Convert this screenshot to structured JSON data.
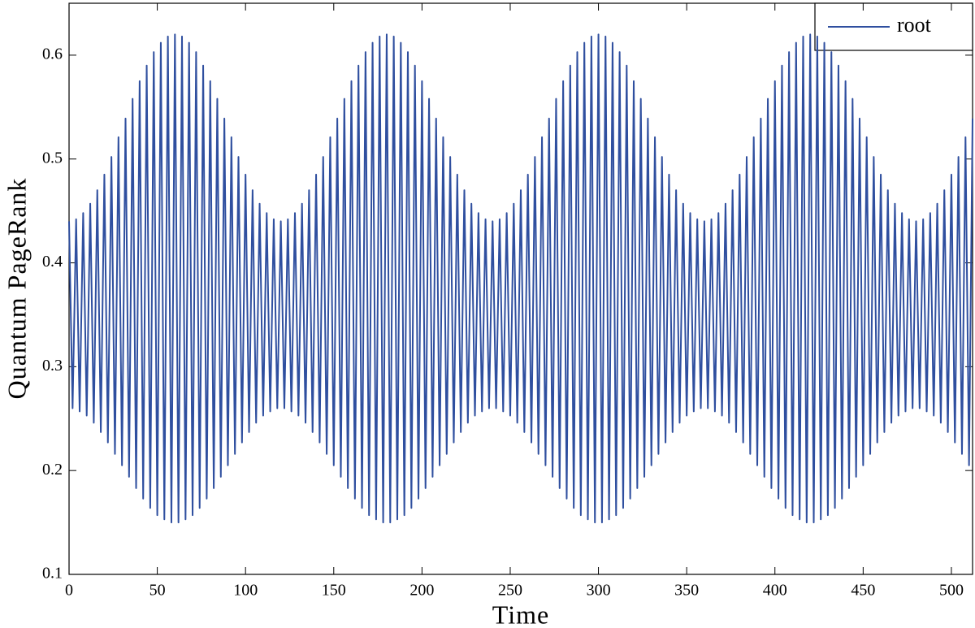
{
  "chart_data": {
    "type": "line",
    "xlabel": "Time",
    "ylabel": "Quantum PageRank",
    "xlim": [
      0,
      512
    ],
    "ylim": [
      0.1,
      0.65
    ],
    "xticks": [
      0,
      50,
      100,
      150,
      200,
      250,
      300,
      350,
      400,
      450,
      500
    ],
    "yticks": [
      0.1,
      0.2,
      0.3,
      0.4,
      0.5,
      0.6
    ],
    "legend": "top-right",
    "x": [
      0,
      2,
      4,
      6,
      8,
      10,
      12,
      14,
      16,
      18,
      20,
      22,
      24,
      26,
      28,
      30,
      32,
      34,
      36,
      38,
      40,
      42,
      44,
      46,
      48,
      50,
      52,
      54,
      56,
      58,
      60,
      62,
      64,
      66,
      68,
      70,
      72,
      74,
      76,
      78,
      80,
      82,
      84,
      86,
      88,
      90,
      92,
      94,
      96,
      98,
      100,
      102,
      104,
      106,
      108,
      110,
      112,
      114,
      116,
      118,
      120,
      122,
      124,
      126,
      128,
      130,
      132,
      134,
      136,
      138,
      140,
      142,
      144,
      146,
      148,
      150,
      152,
      154,
      156,
      158,
      160,
      162,
      164,
      166,
      168,
      170,
      172,
      174,
      176,
      178,
      180,
      182,
      184,
      186,
      188,
      190,
      192,
      194,
      196,
      198,
      200,
      202,
      204,
      206,
      208,
      210,
      212,
      214,
      216,
      218,
      220,
      222,
      224,
      226,
      228,
      230,
      232,
      234,
      236,
      238,
      240,
      242,
      244,
      246,
      248,
      250,
      252,
      254,
      256,
      258,
      260,
      262,
      264,
      266,
      268,
      270,
      272,
      274,
      276,
      278,
      280,
      282,
      284,
      286,
      288,
      290,
      292,
      294,
      296,
      298,
      300,
      302,
      304,
      306,
      308,
      310,
      312,
      314,
      316,
      318,
      320,
      322,
      324,
      326,
      328,
      330,
      332,
      334,
      336,
      338,
      340,
      342,
      344,
      346,
      348,
      350,
      352,
      354,
      356,
      358,
      360,
      362,
      364,
      366,
      368,
      370,
      372,
      374,
      376,
      378,
      380,
      382,
      384,
      386,
      388,
      390,
      392,
      394,
      396,
      398,
      400,
      402,
      404,
      406,
      408,
      410,
      412,
      414,
      416,
      418,
      420,
      422,
      424,
      426,
      428,
      430,
      432,
      434,
      436,
      438,
      440,
      442,
      444,
      446,
      448,
      450,
      452,
      454,
      456,
      458,
      460,
      462,
      464,
      466,
      468,
      470,
      472,
      474,
      476,
      478,
      480,
      482,
      484,
      486,
      488,
      490,
      492,
      494,
      496,
      498,
      500,
      502,
      504,
      506,
      508,
      510,
      512
    ],
    "series": [
      {
        "name": "root",
        "color": "#2f4f9f",
        "values": [
          0.44,
          0.26,
          0.442,
          0.257,
          0.448,
          0.253,
          0.457,
          0.246,
          0.47,
          0.237,
          0.485,
          0.227,
          0.502,
          0.216,
          0.521,
          0.205,
          0.539,
          0.194,
          0.558,
          0.183,
          0.575,
          0.173,
          0.59,
          0.164,
          0.603,
          0.157,
          0.612,
          0.153,
          0.618,
          0.15,
          0.62,
          0.15,
          0.618,
          0.153,
          0.612,
          0.157,
          0.603,
          0.164,
          0.59,
          0.173,
          0.575,
          0.183,
          0.558,
          0.194,
          0.539,
          0.205,
          0.521,
          0.216,
          0.502,
          0.227,
          0.485,
          0.237,
          0.47,
          0.246,
          0.457,
          0.253,
          0.448,
          0.257,
          0.442,
          0.26,
          0.44,
          0.26,
          0.442,
          0.257,
          0.448,
          0.253,
          0.457,
          0.246,
          0.47,
          0.237,
          0.485,
          0.227,
          0.502,
          0.216,
          0.521,
          0.205,
          0.539,
          0.194,
          0.558,
          0.183,
          0.575,
          0.173,
          0.59,
          0.164,
          0.603,
          0.157,
          0.612,
          0.153,
          0.618,
          0.15,
          0.62,
          0.15,
          0.618,
          0.153,
          0.612,
          0.157,
          0.603,
          0.164,
          0.59,
          0.173,
          0.575,
          0.183,
          0.558,
          0.194,
          0.539,
          0.205,
          0.521,
          0.216,
          0.502,
          0.227,
          0.485,
          0.237,
          0.47,
          0.246,
          0.457,
          0.253,
          0.448,
          0.257,
          0.442,
          0.26,
          0.44,
          0.26,
          0.442,
          0.257,
          0.448,
          0.253,
          0.457,
          0.246,
          0.47,
          0.237,
          0.485,
          0.227,
          0.502,
          0.216,
          0.521,
          0.205,
          0.539,
          0.194,
          0.558,
          0.183,
          0.575,
          0.173,
          0.59,
          0.164,
          0.603,
          0.157,
          0.612,
          0.153,
          0.618,
          0.15,
          0.62,
          0.15,
          0.618,
          0.153,
          0.612,
          0.157,
          0.603,
          0.164,
          0.59,
          0.173,
          0.575,
          0.183,
          0.558,
          0.194,
          0.539,
          0.205,
          0.521,
          0.216,
          0.502,
          0.227,
          0.485,
          0.237,
          0.47,
          0.246,
          0.457,
          0.253,
          0.448,
          0.257,
          0.442,
          0.26,
          0.44,
          0.26,
          0.442,
          0.257,
          0.448,
          0.253,
          0.457,
          0.246,
          0.47,
          0.237,
          0.485,
          0.227,
          0.502,
          0.216,
          0.521,
          0.205,
          0.539,
          0.194,
          0.558,
          0.183,
          0.575,
          0.173,
          0.59,
          0.164,
          0.603,
          0.157,
          0.612,
          0.153,
          0.618,
          0.15,
          0.62,
          0.15,
          0.618,
          0.153,
          0.612,
          0.157,
          0.603,
          0.164,
          0.59,
          0.173,
          0.575,
          0.183,
          0.558,
          0.194,
          0.539,
          0.205,
          0.521,
          0.216,
          0.502,
          0.227,
          0.485,
          0.237,
          0.47,
          0.246,
          0.457,
          0.253,
          0.448,
          0.257,
          0.442,
          0.26,
          0.44,
          0.26,
          0.442,
          0.257,
          0.448,
          0.253,
          0.457,
          0.246,
          0.47,
          0.237,
          0.485,
          0.227,
          0.502,
          0.216,
          0.521,
          0.205,
          0.539
        ]
      }
    ]
  }
}
